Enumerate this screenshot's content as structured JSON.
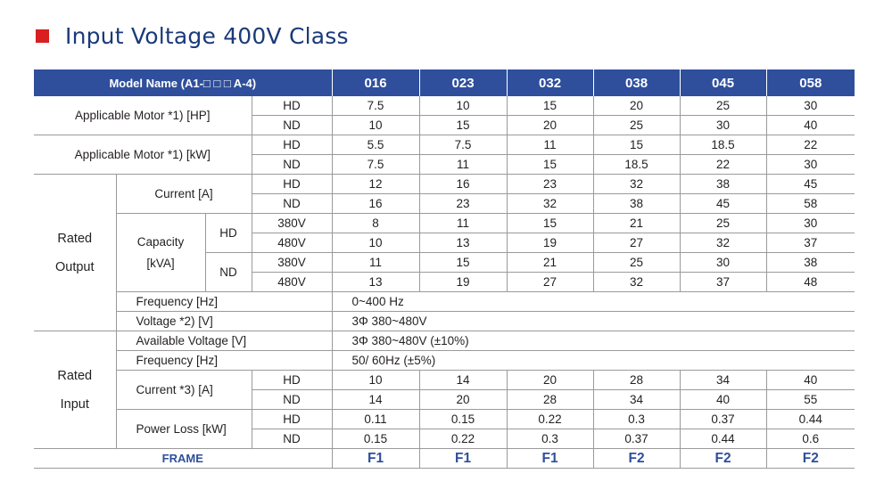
{
  "title": "Input Voltage 400V Class",
  "header": {
    "model_name": "Model Name (A1-□ □ □ A-4)",
    "models": [
      "016",
      "023",
      "032",
      "038",
      "045",
      "058"
    ]
  },
  "labels": {
    "applicable_motor_hp": "Applicable Motor *1) [HP]",
    "applicable_motor_kw": "Applicable Motor *1) [kW]",
    "rated_output_1": "Rated",
    "rated_output_2": "Output",
    "current_a": "Current [A]",
    "capacity_1": "Capacity",
    "capacity_2": "[kVA]",
    "frequency_hz_out": "Frequency [Hz]",
    "voltage_v": "Voltage *2) [V]",
    "rated_input_1": "Rated",
    "rated_input_2": "Input",
    "available_voltage": "Available Voltage  [V]",
    "frequency_hz_in": "Frequency [Hz]",
    "current_a_in": "Current *3) [A]",
    "power_loss": "Power Loss  [kW]",
    "frame": "FRAME",
    "hd": "HD",
    "nd": "ND",
    "v380": "380V",
    "v480": "480V"
  },
  "rows": {
    "motor_hp_hd": [
      "7.5",
      "10",
      "15",
      "20",
      "25",
      "30"
    ],
    "motor_hp_nd": [
      "10",
      "15",
      "20",
      "25",
      "30",
      "40"
    ],
    "motor_kw_hd": [
      "5.5",
      "7.5",
      "11",
      "15",
      "18.5",
      "22"
    ],
    "motor_kw_nd": [
      "7.5",
      "11",
      "15",
      "18.5",
      "22",
      "30"
    ],
    "out_current_hd": [
      "12",
      "16",
      "23",
      "32",
      "38",
      "45"
    ],
    "out_current_nd": [
      "16",
      "23",
      "32",
      "38",
      "45",
      "58"
    ],
    "cap_hd_380": [
      "8",
      "11",
      "15",
      "21",
      "25",
      "30"
    ],
    "cap_hd_480": [
      "10",
      "13",
      "19",
      "27",
      "32",
      "37"
    ],
    "cap_nd_380": [
      "11",
      "15",
      "21",
      "25",
      "30",
      "38"
    ],
    "cap_nd_480": [
      "13",
      "19",
      "27",
      "32",
      "37",
      "48"
    ],
    "out_frequency": "0~400 Hz",
    "out_voltage": "3Φ 380~480V",
    "in_available_voltage": "3Φ 380~480V (±10%)",
    "in_frequency": "50/ 60Hz (±5%)",
    "in_current_hd": [
      "10",
      "14",
      "20",
      "28",
      "34",
      "40"
    ],
    "in_current_nd": [
      "14",
      "20",
      "28",
      "34",
      "40",
      "55"
    ],
    "power_loss_hd": [
      "0.11",
      "0.15",
      "0.22",
      "0.3",
      "0.37",
      "0.44"
    ],
    "power_loss_nd": [
      "0.15",
      "0.22",
      "0.3",
      "0.37",
      "0.44",
      "0.6"
    ],
    "frame": [
      "F1",
      "F1",
      "F1",
      "F2",
      "F2",
      "F2"
    ]
  },
  "colors": {
    "header_bg": "#2f4f9c",
    "title_text": "#1a3a7a",
    "accent_square": "#d7201f",
    "frame_text": "#2f4f9c"
  }
}
